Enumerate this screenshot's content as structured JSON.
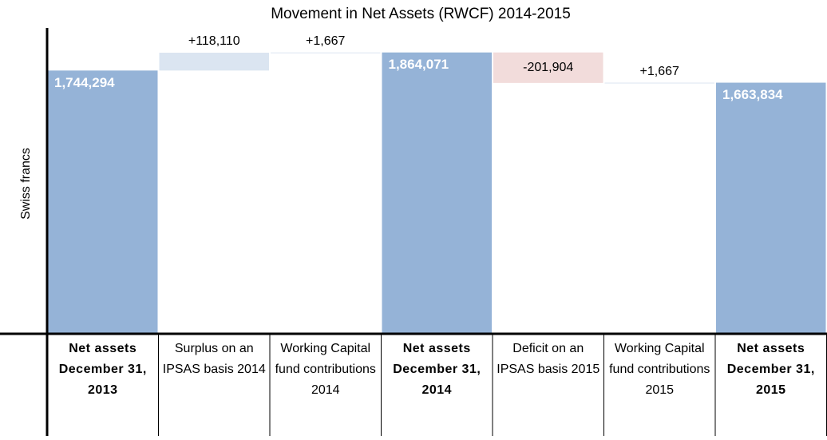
{
  "chart_data": {
    "type": "waterfall",
    "title": "Movement in Net Assets (RWCF) 2014-2015",
    "y_label": "Swiss francs",
    "categories": [
      "Net assets December 31, 2013",
      "Surplus on an IPSAS basis 2014",
      "Working Capital fund contributions 2014",
      "Net assets December 31, 2014",
      "Deficit on an IPSAS basis 2015",
      "Working Capital fund contributions 2015",
      "Net assets December 31, 2015"
    ],
    "measure": [
      "total",
      "relative",
      "relative",
      "total",
      "relative",
      "relative",
      "total"
    ],
    "values": [
      1744294,
      118110,
      1667,
      1864071,
      -201904,
      1667,
      1663834
    ],
    "value_labels": [
      "1,744,294",
      "+118,110",
      "+1,667",
      "1,864,071",
      "-201,904",
      "+1,667",
      "1,663,834"
    ],
    "colors": {
      "total": "#95b3d7",
      "increase": "#dbe5f1",
      "decrease": "#f2dcdb"
    },
    "ylim": [
      0,
      2000000
    ]
  }
}
